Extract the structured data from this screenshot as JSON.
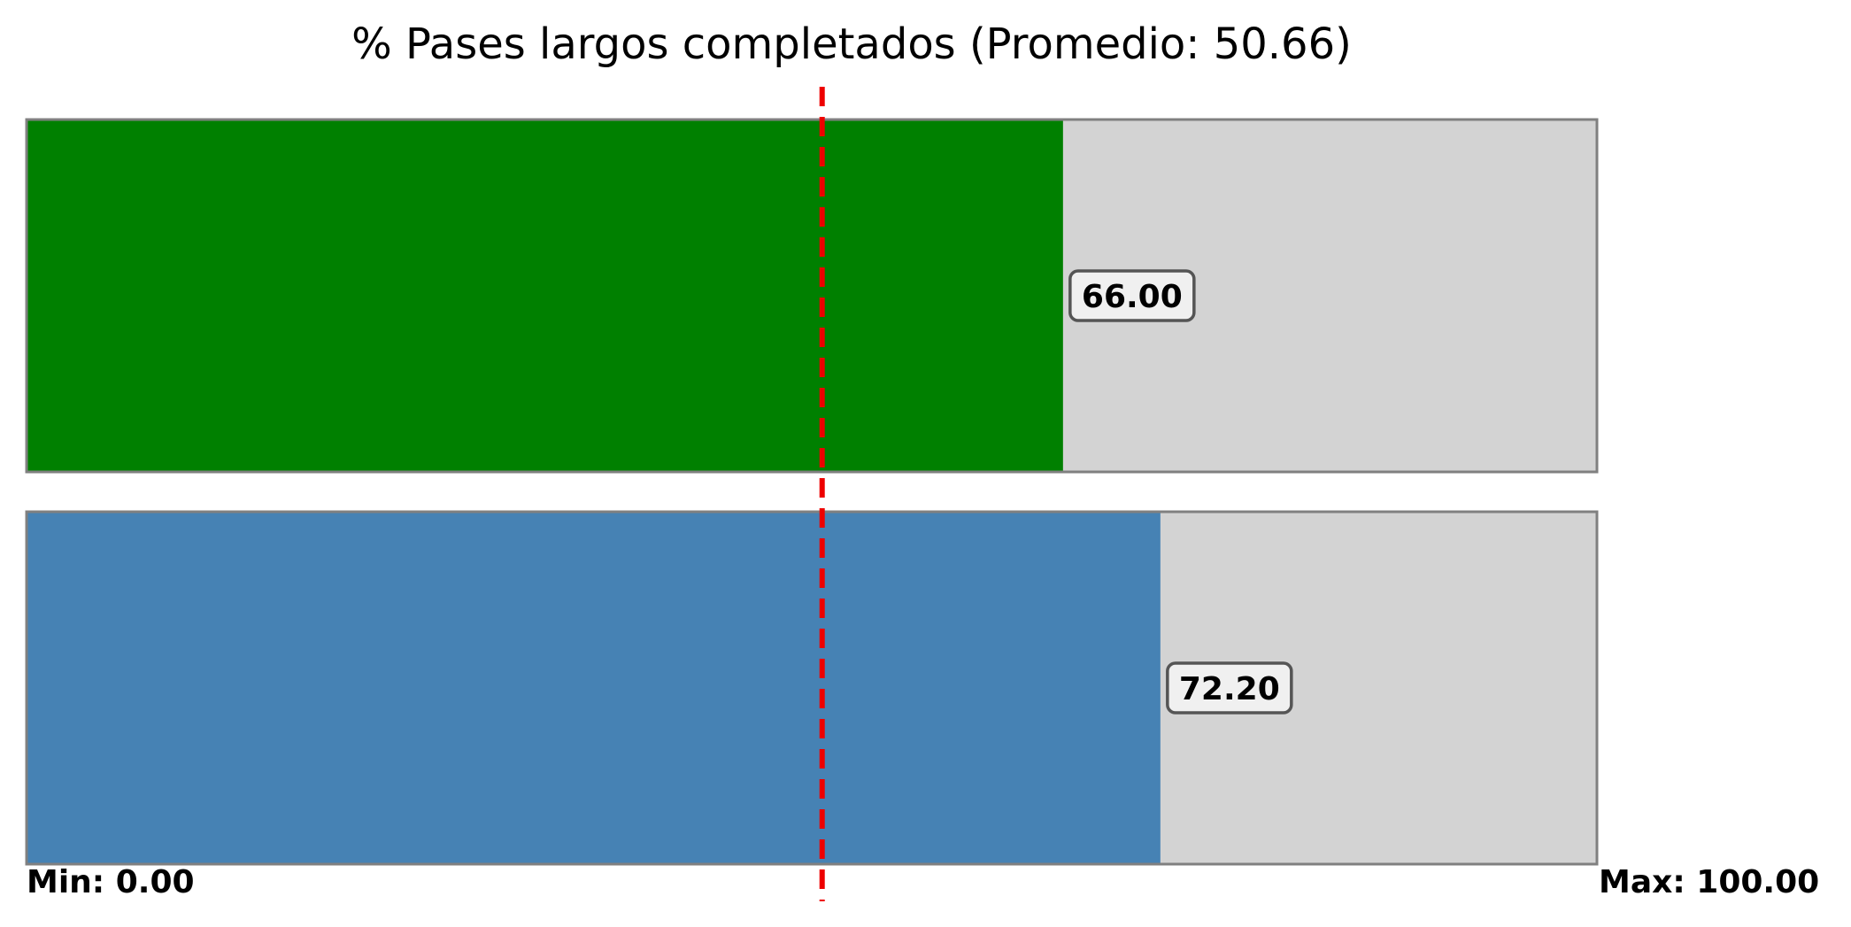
{
  "chart_data": {
    "type": "bar",
    "orientation": "horizontal",
    "title": "% Pases largos completados (Promedio: 50.66)",
    "xlabel": "",
    "ylabel": "",
    "xlim": [
      0,
      100
    ],
    "grid": false,
    "average": 50.66,
    "min_label": "Min: 0.00",
    "max_label": "Max: 100.00",
    "bars": [
      {
        "value": 66.0,
        "label": "66.00",
        "color": "#008000"
      },
      {
        "value": 72.2,
        "label": "72.20",
        "color": "#4682b4"
      }
    ],
    "colors": {
      "background_bar": "#d3d3d3",
      "bar_border": "#808080",
      "average_line": "#ee0000",
      "label_box_fill": "#f0f0f0",
      "label_box_border": "#555555"
    }
  }
}
